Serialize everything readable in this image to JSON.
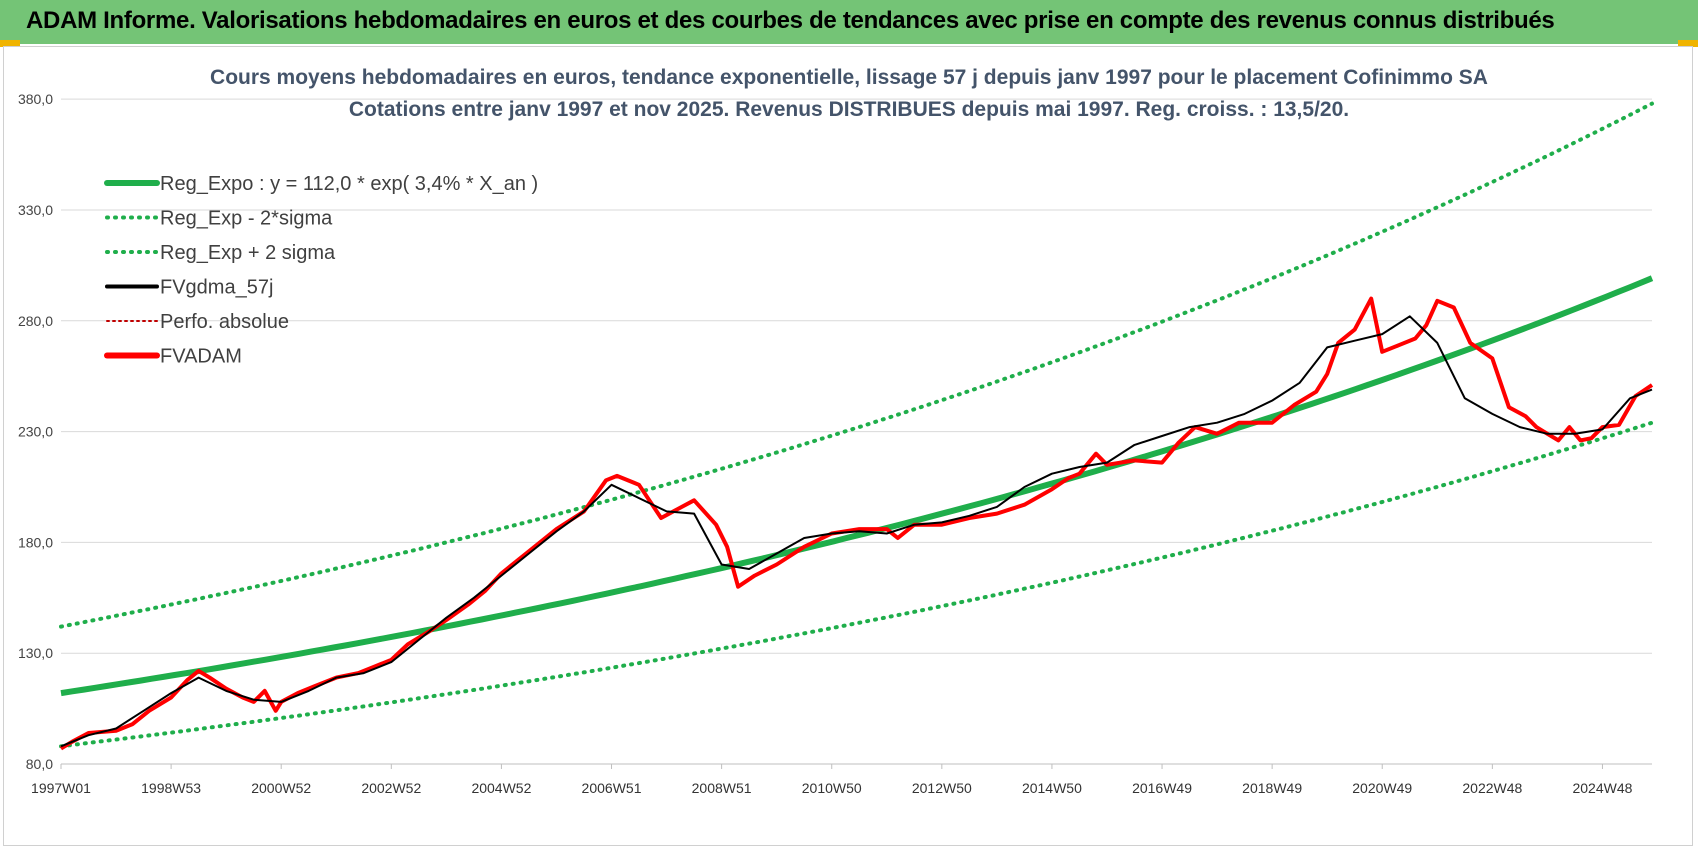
{
  "banner": {
    "title": "ADAM Informe. Valorisations hebdomadaires en euros et des courbes de tendances avec prise en compte des revenus connus distribués"
  },
  "colors": {
    "banner_bg": "#74c476",
    "corner_accent": "#f0b400",
    "reg_green": "#1fae4b",
    "fvadam_red": "#ff0000",
    "moving_avg_black": "#000000",
    "perfo_red": "#c00000",
    "title_text": "#44546a"
  },
  "chart_data": {
    "type": "line",
    "title_lines": [
      "Cours moyens hebdomadaires en euros, tendance exponentielle, lissage 57 j depuis janv 1997  pour le placement Cofinimmo SA",
      "Cotations entre janv 1997 et nov 2025. Revenus DISTRIBUES depuis mai 1997.  Reg. croiss. : 13,5/20."
    ],
    "x_tick_labels": [
      "1997W01",
      "1998W53",
      "2000W52",
      "2002W52",
      "2004W52",
      "2006W51",
      "2008W51",
      "2010W50",
      "2012W50",
      "2014W50",
      "2016W49",
      "2018W49",
      "2020W49",
      "2022W48",
      "2024W48"
    ],
    "x_tick_years": [
      1997.0,
      1999.0,
      2001.0,
      2003.0,
      2005.0,
      2007.0,
      2009.0,
      2011.0,
      2013.0,
      2015.0,
      2017.0,
      2019.0,
      2021.0,
      2023.0,
      2025.0
    ],
    "x_range": [
      1997.0,
      2025.9
    ],
    "y_tick_labels": [
      "80,0",
      "130,0",
      "180,0",
      "230,0",
      "280,0",
      "330,0",
      "380,0"
    ],
    "ylim": [
      80,
      390
    ],
    "grid": true,
    "legend_position": "top-left",
    "legend": [
      {
        "label": "Reg_Expo : y = 112,0 * exp( 3,4% *  X_an )",
        "color": "#1fae4b",
        "style": "solid-thick"
      },
      {
        "label": "Reg_Exp - 2*sigma",
        "color": "#1fae4b",
        "style": "dotted"
      },
      {
        "label": "Reg_Exp + 2 sigma",
        "color": "#1fae4b",
        "style": "dotted"
      },
      {
        "label": "FVgdma_57j",
        "color": "#000000",
        "style": "solid"
      },
      {
        "label": "Perfo. absolue",
        "color": "#c00000",
        "style": "dotted-thin"
      },
      {
        "label": "FVADAM",
        "color": "#ff0000",
        "style": "solid-thick"
      }
    ],
    "regression": {
      "a": 112.0,
      "rate": 0.034,
      "minus_2sigma": [
        88,
        234
      ],
      "plus_2sigma": [
        142,
        378
      ]
    },
    "series": [
      {
        "name": "Reg_Expo : y = 112,0 * exp( 3,4% *  X_an )",
        "x": [
          1997.0,
          2001.0,
          2005.0,
          2009.0,
          2013.0,
          2017.0,
          2021.0,
          2025.9
        ],
        "y": [
          112,
          128,
          146,
          168,
          192,
          220,
          252,
          297
        ]
      },
      {
        "name": "Reg_Exp - 2*sigma",
        "x": [
          1997.0,
          2001.0,
          2005.0,
          2009.0,
          2013.0,
          2017.0,
          2021.0,
          2025.9
        ],
        "y": [
          88,
          100,
          115,
          131,
          150,
          172,
          197,
          234
        ]
      },
      {
        "name": "Reg_Exp + 2 sigma",
        "x": [
          1997.0,
          2001.0,
          2005.0,
          2009.0,
          2013.0,
          2017.0,
          2021.0,
          2025.9
        ],
        "y": [
          142,
          163,
          186,
          213,
          243,
          279,
          319,
          378
        ]
      },
      {
        "name": "FVADAM",
        "x": [
          1997.0,
          1997.2,
          1997.5,
          1998.0,
          1998.3,
          1998.6,
          1999.0,
          1999.3,
          1999.5,
          1999.7,
          2000.0,
          2000.3,
          2000.5,
          2000.7,
          2000.9,
          2001.0,
          2001.3,
          2001.6,
          2002.0,
          2002.4,
          2002.7,
          2003.0,
          2003.3,
          2003.7,
          2004.0,
          2004.4,
          2004.7,
          2005.0,
          2005.5,
          2006.0,
          2006.5,
          2006.9,
          2007.1,
          2007.5,
          2007.9,
          2008.2,
          2008.5,
          2008.9,
          2009.1,
          2009.3,
          2009.6,
          2010.0,
          2010.5,
          2011.0,
          2011.5,
          2012.0,
          2012.2,
          2012.5,
          2013.0,
          2013.5,
          2014.0,
          2014.5,
          2015.0,
          2015.3,
          2015.5,
          2015.8,
          2016.0,
          2016.5,
          2017.0,
          2017.3,
          2017.6,
          2018.0,
          2018.4,
          2018.7,
          2019.0,
          2019.4,
          2019.8,
          2020.0,
          2020.2,
          2020.5,
          2020.8,
          2021.0,
          2021.3,
          2021.6,
          2021.8,
          2022.0,
          2022.3,
          2022.6,
          2023.0,
          2023.3,
          2023.6,
          2023.8,
          2024.0,
          2024.2,
          2024.4,
          2024.6,
          2024.8,
          2025.0,
          2025.3,
          2025.6,
          2025.9
        ],
        "y": [
          87,
          90,
          94,
          95,
          98,
          104,
          110,
          118,
          122,
          119,
          114,
          110,
          108,
          113,
          104,
          108,
          112,
          115,
          119,
          121,
          124,
          127,
          134,
          140,
          145,
          152,
          158,
          166,
          176,
          186,
          194,
          208,
          210,
          206,
          191,
          195,
          199,
          188,
          178,
          160,
          165,
          170,
          178,
          184,
          186,
          186,
          182,
          188,
          188,
          191,
          193,
          197,
          204,
          209,
          211,
          220,
          215,
          217,
          216,
          225,
          232,
          229,
          234,
          234,
          234,
          242,
          248,
          256,
          270,
          276,
          290,
          266,
          269,
          272,
          278,
          289,
          286,
          270,
          263,
          241,
          237,
          232,
          229,
          226,
          232,
          226,
          227,
          232,
          233,
          246,
          251
        ]
      },
      {
        "name": "FVgdma_57j",
        "x": [
          1997.0,
          1997.5,
          1998.0,
          1998.5,
          1999.0,
          1999.5,
          2000.0,
          2000.5,
          2001.0,
          2001.5,
          2002.0,
          2002.5,
          2003.0,
          2003.5,
          2004.0,
          2004.5,
          2005.0,
          2005.5,
          2006.0,
          2006.5,
          2007.0,
          2007.5,
          2008.0,
          2008.5,
          2009.0,
          2009.5,
          2010.0,
          2010.5,
          2011.0,
          2011.5,
          2012.0,
          2012.5,
          2013.0,
          2013.5,
          2014.0,
          2014.5,
          2015.0,
          2015.5,
          2016.0,
          2016.5,
          2017.0,
          2017.5,
          2018.0,
          2018.5,
          2019.0,
          2019.5,
          2020.0,
          2020.5,
          2021.0,
          2021.5,
          2022.0,
          2022.5,
          2023.0,
          2023.5,
          2024.0,
          2024.5,
          2025.0,
          2025.5,
          2025.9
        ],
        "y": [
          88,
          93,
          96,
          104,
          112,
          119,
          113,
          109,
          108,
          113,
          119,
          121,
          126,
          136,
          146,
          155,
          165,
          175,
          185,
          194,
          206,
          200,
          194,
          193,
          170,
          168,
          175,
          182,
          184,
          185,
          184,
          188,
          189,
          192,
          196,
          205,
          211,
          214,
          216,
          224,
          228,
          232,
          234,
          238,
          244,
          252,
          268,
          271,
          274,
          282,
          270,
          245,
          238,
          232,
          229,
          229,
          231,
          245,
          249
        ]
      }
    ]
  }
}
